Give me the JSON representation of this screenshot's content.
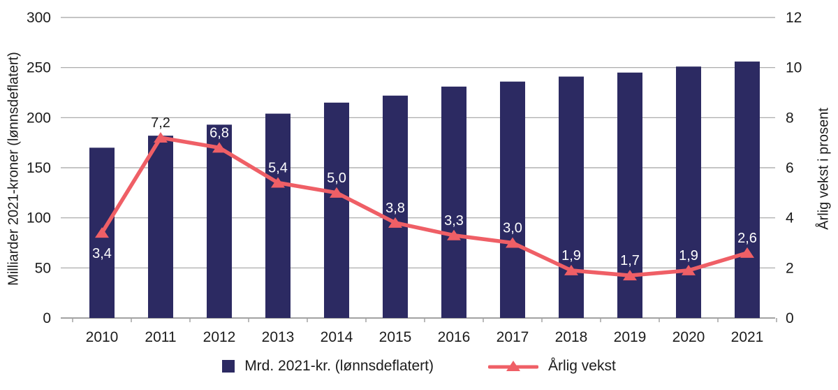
{
  "chart_data": {
    "type": "bar",
    "subtype": "combo-bar-line-dual-axis",
    "categories": [
      "2010",
      "2011",
      "2012",
      "2013",
      "2014",
      "2015",
      "2016",
      "2017",
      "2018",
      "2019",
      "2020",
      "2021"
    ],
    "series": [
      {
        "name": "Mrd. 2021-kr. (lønnsdeflatert)",
        "type": "bar",
        "axis": "left",
        "color": "#2c2a62",
        "values": [
          170,
          182,
          193,
          204,
          215,
          222,
          231,
          236,
          241,
          245,
          251,
          256
        ]
      },
      {
        "name": "Årlig vekst",
        "type": "line",
        "axis": "right",
        "color": "#ef5f66",
        "values": [
          3.4,
          7.2,
          6.8,
          5.4,
          5.0,
          3.8,
          3.3,
          3.0,
          1.9,
          1.7,
          1.9,
          2.6
        ],
        "point_labels": [
          "3,4",
          "7,2",
          "6,8",
          "5,4",
          "5,0",
          "3,8",
          "3,3",
          "3,0",
          "1,9",
          "1,7",
          "1,9",
          "2,6"
        ],
        "point_label_colors": [
          "#ffffff",
          "#1c1c1c",
          "#ffffff",
          "#ffffff",
          "#ffffff",
          "#ffffff",
          "#ffffff",
          "#ffffff",
          "#ffffff",
          "#ffffff",
          "#ffffff",
          "#ffffff"
        ],
        "point_label_side": [
          "below",
          "above",
          "above",
          "above",
          "above",
          "above",
          "above",
          "above",
          "above",
          "above",
          "above",
          "above"
        ]
      }
    ],
    "left_axis": {
      "label": "Milliarder 2021-kroner (lønnsdeflatert)",
      "min": 0,
      "max": 300,
      "step": 50,
      "ticks": [
        "0",
        "50",
        "100",
        "150",
        "200",
        "250",
        "300"
      ]
    },
    "right_axis": {
      "label": "Årlig vekst i prosent",
      "min": 0,
      "max": 12,
      "step": 2,
      "ticks": [
        "0",
        "2",
        "4",
        "6",
        "8",
        "10",
        "12"
      ]
    },
    "grid": true,
    "legend_position": "bottom"
  },
  "style": {
    "grid_color": "#a2a2a2",
    "text_color": "#1c1c1c",
    "background": "#ffffff"
  }
}
